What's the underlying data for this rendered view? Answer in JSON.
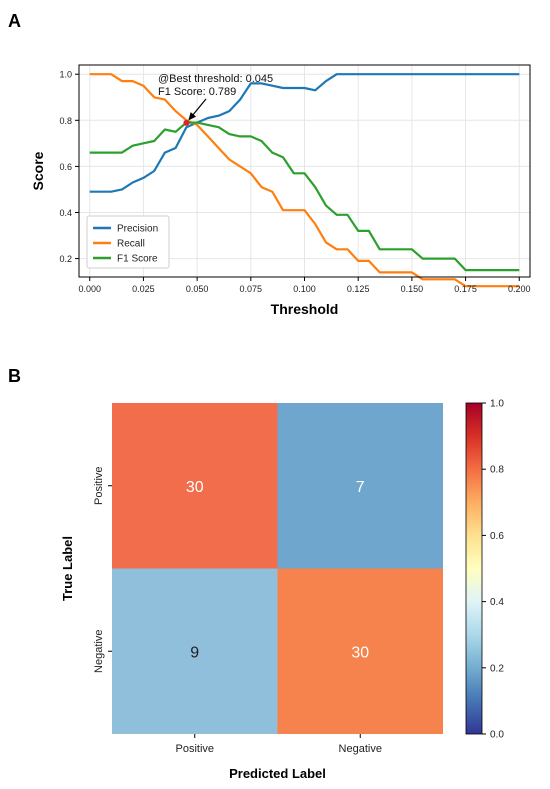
{
  "panel_a_label": "A",
  "panel_b_label": "B",
  "chart_data": [
    {
      "type": "line",
      "xlabel": "Threshold",
      "ylabel": "Score",
      "xlim": [
        -0.005,
        0.205
      ],
      "ylim": [
        0.12,
        1.04
      ],
      "xticks": [
        0.0,
        0.025,
        0.05,
        0.075,
        0.1,
        0.125,
        0.15,
        0.175,
        0.2
      ],
      "xtick_labels": [
        "0.000",
        "0.025",
        "0.050",
        "0.075",
        "0.100",
        "0.125",
        "0.150",
        "0.175",
        "0.200"
      ],
      "yticks": [
        0.2,
        0.4,
        0.6,
        0.8,
        1.0
      ],
      "ytick_labels": [
        "0.2",
        "0.4",
        "0.6",
        "0.8",
        "1.0"
      ],
      "grid": true,
      "legend_position": "bottom-left",
      "annotation": {
        "lines": [
          "@Best threshold: 0.045",
          "F1 Score: 0.789"
        ],
        "x": 0.045,
        "y": 0.789
      },
      "series": [
        {
          "name": "Precision",
          "color": "#1f77b4",
          "x": [
            0.0,
            0.01,
            0.015,
            0.02,
            0.025,
            0.03,
            0.035,
            0.04,
            0.045,
            0.05,
            0.055,
            0.06,
            0.065,
            0.07,
            0.075,
            0.08,
            0.085,
            0.09,
            0.095,
            0.1,
            0.105,
            0.11,
            0.115,
            0.12,
            0.2
          ],
          "y": [
            0.49,
            0.49,
            0.5,
            0.53,
            0.55,
            0.58,
            0.66,
            0.68,
            0.77,
            0.79,
            0.81,
            0.82,
            0.84,
            0.89,
            0.96,
            0.96,
            0.95,
            0.94,
            0.94,
            0.94,
            0.93,
            0.97,
            1.0,
            1.0,
            1.0
          ]
        },
        {
          "name": "Recall",
          "color": "#ff7f0e",
          "x": [
            0.0,
            0.01,
            0.015,
            0.02,
            0.025,
            0.03,
            0.035,
            0.04,
            0.045,
            0.05,
            0.055,
            0.06,
            0.065,
            0.07,
            0.075,
            0.08,
            0.085,
            0.09,
            0.095,
            0.1,
            0.105,
            0.11,
            0.115,
            0.12,
            0.125,
            0.13,
            0.135,
            0.14,
            0.145,
            0.15,
            0.155,
            0.16,
            0.165,
            0.17,
            0.175,
            0.18,
            0.185,
            0.2
          ],
          "y": [
            1.0,
            1.0,
            0.97,
            0.97,
            0.95,
            0.9,
            0.89,
            0.84,
            0.8,
            0.78,
            0.73,
            0.68,
            0.63,
            0.6,
            0.57,
            0.51,
            0.49,
            0.41,
            0.41,
            0.41,
            0.35,
            0.27,
            0.24,
            0.24,
            0.19,
            0.19,
            0.14,
            0.14,
            0.14,
            0.14,
            0.11,
            0.11,
            0.11,
            0.11,
            0.08,
            0.08,
            0.08,
            0.08
          ]
        },
        {
          "name": "F1 Score",
          "color": "#2ca02c",
          "x": [
            0.0,
            0.01,
            0.015,
            0.02,
            0.025,
            0.03,
            0.035,
            0.04,
            0.045,
            0.05,
            0.055,
            0.06,
            0.065,
            0.07,
            0.075,
            0.08,
            0.085,
            0.09,
            0.095,
            0.1,
            0.105,
            0.11,
            0.115,
            0.12,
            0.125,
            0.13,
            0.135,
            0.14,
            0.145,
            0.15,
            0.155,
            0.16,
            0.165,
            0.17,
            0.175,
            0.18,
            0.185,
            0.2
          ],
          "y": [
            0.66,
            0.66,
            0.66,
            0.69,
            0.7,
            0.71,
            0.76,
            0.75,
            0.79,
            0.79,
            0.78,
            0.77,
            0.74,
            0.73,
            0.73,
            0.71,
            0.66,
            0.64,
            0.57,
            0.57,
            0.51,
            0.43,
            0.39,
            0.39,
            0.32,
            0.32,
            0.24,
            0.24,
            0.24,
            0.24,
            0.2,
            0.2,
            0.2,
            0.2,
            0.15,
            0.15,
            0.15,
            0.15
          ]
        }
      ]
    },
    {
      "type": "heatmap",
      "xlabel": "Predicted Label",
      "ylabel": "True Label",
      "x_categories": [
        "Positive",
        "Negative"
      ],
      "y_categories": [
        "Positive",
        "Negative"
      ],
      "values": [
        [
          30,
          7
        ],
        [
          9,
          30
        ]
      ],
      "cell_values_normalized": [
        [
          0.811,
          0.189
        ],
        [
          0.231,
          0.769
        ]
      ],
      "cell_colors": [
        [
          "#f26d4b",
          "#6ea6ce"
        ],
        [
          "#8fbfdb",
          "#f6824d"
        ]
      ],
      "colorbar": {
        "range": [
          0.0,
          1.0
        ],
        "ticks": [
          0.0,
          0.2,
          0.4,
          0.6,
          0.8,
          1.0
        ],
        "tick_labels": [
          "0.0",
          "0.2",
          "0.4",
          "0.6",
          "0.8",
          "1.0"
        ],
        "colormap": "RdYlBu_r",
        "stops": [
          "#313695",
          "#4575b4",
          "#74add1",
          "#abd9e9",
          "#e0f3f8",
          "#ffffbf",
          "#fee090",
          "#fdae61",
          "#f46d43",
          "#d73027",
          "#a50026"
        ]
      }
    }
  ]
}
